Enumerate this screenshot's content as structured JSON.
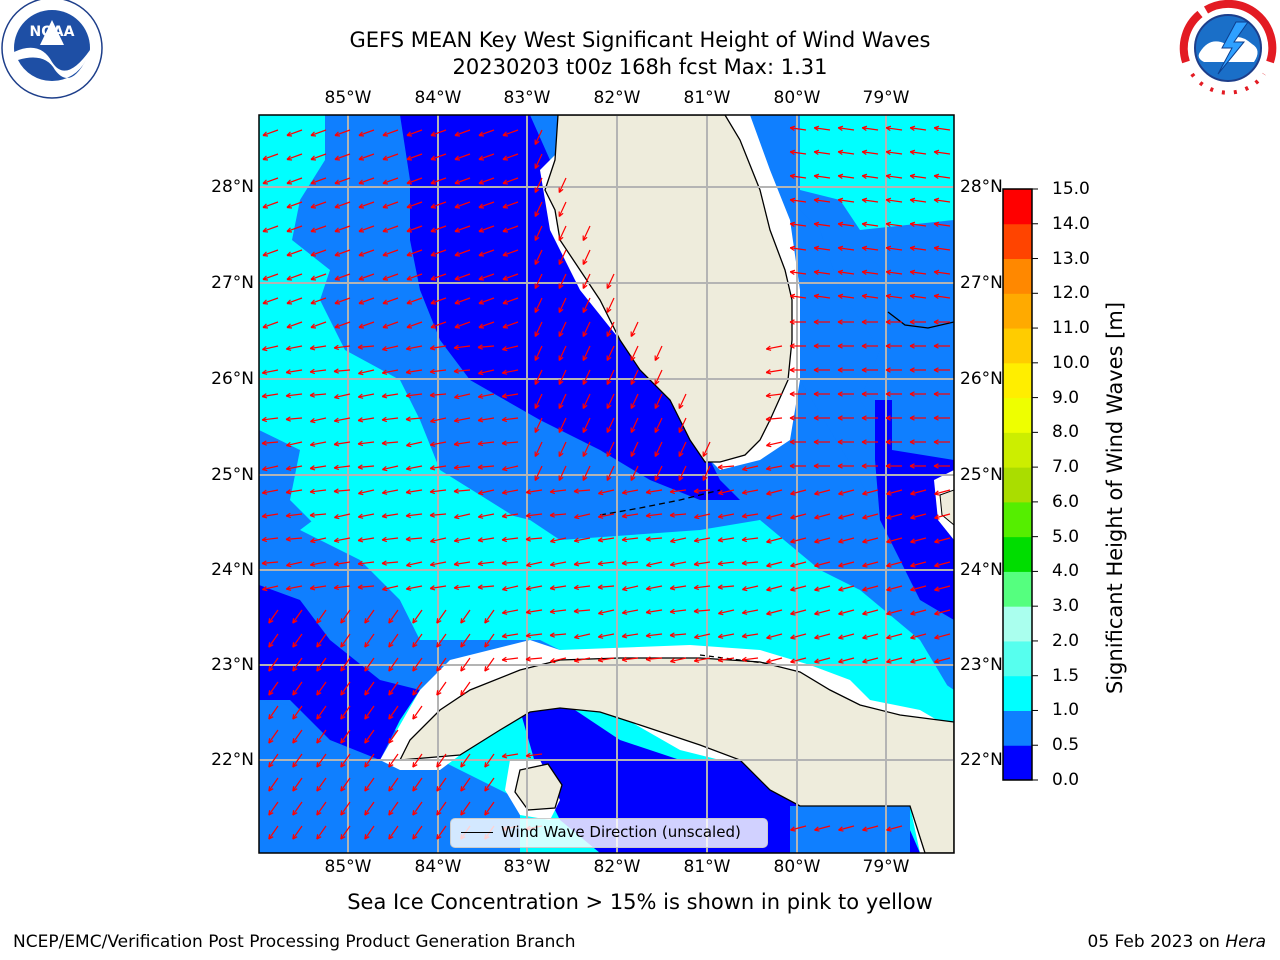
{
  "title": {
    "line1": "GEFS MEAN Key West Significant Height of Wind Waves",
    "line2": "20230203 t00z 168h fcst   Max: 1.31"
  },
  "logos": {
    "left": {
      "icon": "noaa-logo-icon",
      "text": "NOAA",
      "ring_text": "NATIONAL OCEANIC AND ATMOSPHERIC ADMINISTRATION · U.S. DEPARTMENT OF COMMERCE"
    },
    "right": {
      "icon": "nws-logo-icon",
      "ring_text": "NATIONAL WEATHER SERVICE"
    }
  },
  "map": {
    "lon_ticks": [
      "85°W",
      "84°W",
      "83°W",
      "82°W",
      "81°W",
      "80°W",
      "79°W"
    ],
    "lat_ticks": [
      "28°N",
      "27°N",
      "26°N",
      "25°N",
      "24°N",
      "23°N",
      "22°N"
    ],
    "lon_range": [
      -86.0,
      -78.25
    ],
    "lat_range": [
      21.08,
      28.75
    ],
    "land_color": "#eeecdc",
    "arrow_color": "#ff0000",
    "legend_label": "Wind Wave Direction (unscaled)"
  },
  "colorbar": {
    "levels": [
      "0.0",
      "0.5",
      "1.0",
      "1.5",
      "2.0",
      "3.0",
      "4.0",
      "5.0",
      "6.0",
      "7.0",
      "8.0",
      "9.0",
      "10.0",
      "11.0",
      "12.0",
      "13.0",
      "14.0",
      "15.0"
    ],
    "colors": [
      "#0000ff",
      "#0f7fff",
      "#00ffff",
      "#56ffee",
      "#aaffee",
      "#55ff7f",
      "#00dd00",
      "#55ee00",
      "#aadd00",
      "#ccee00",
      "#eeff00",
      "#ffee00",
      "#ffcc00",
      "#ffaa00",
      "#ff8800",
      "#ff4400",
      "#ff0000"
    ],
    "title": "Significant Height of Wind Waves [m]"
  },
  "notes": {
    "sea_ice": "Sea Ice Concentration > 15% is shown in pink to yellow"
  },
  "footer": {
    "left": "NCEP/EMC/Verification Post Processing Product Generation Branch",
    "right_date": "05 Feb 2023 on ",
    "right_host": "Hera"
  }
}
